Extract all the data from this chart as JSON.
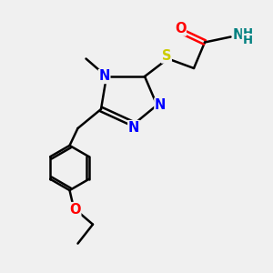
{
  "bg_color": "#f0f0f0",
  "atom_colors": {
    "C": "#000000",
    "N": "#0000ff",
    "O": "#ff0000",
    "S": "#cccc00",
    "NH2": "#008080"
  },
  "bond_color": "#000000",
  "bond_width": 1.8,
  "font_size": 10.5
}
